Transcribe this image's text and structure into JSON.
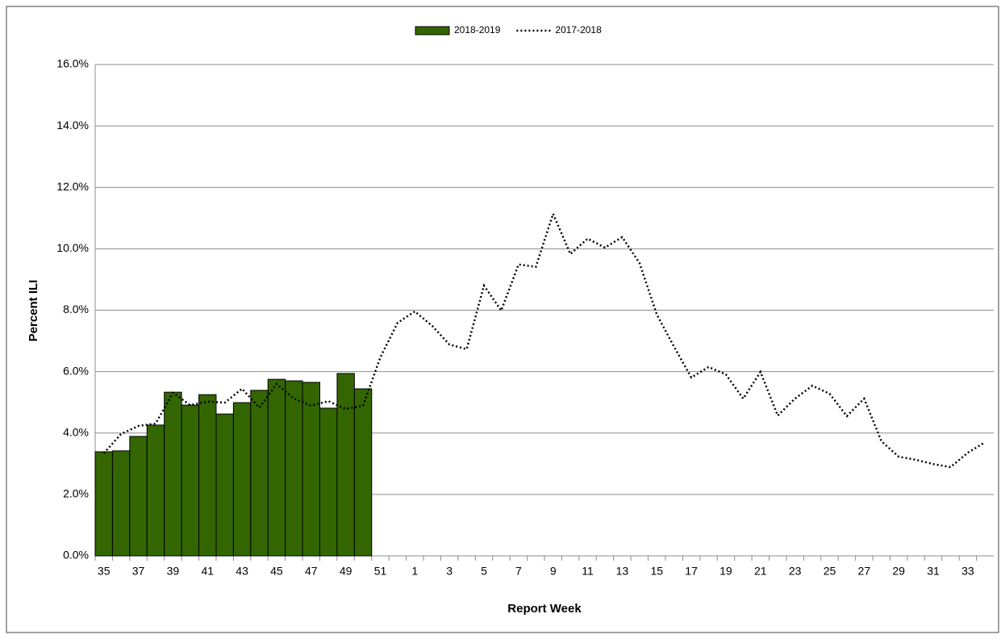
{
  "chart_data": {
    "type": "bar",
    "x_label": "Report Week",
    "y_label": "Percent ILI",
    "categories": [
      "35",
      null,
      "37",
      null,
      "39",
      null,
      "41",
      null,
      "43",
      null,
      "45",
      null,
      "47",
      null,
      "49",
      null,
      "51",
      null,
      "1",
      null,
      "3",
      null,
      "5",
      null,
      "7",
      null,
      "9",
      null,
      "11",
      null,
      "13",
      null,
      "15",
      null,
      "17",
      null,
      "19",
      null,
      "21",
      null,
      "23",
      null,
      "25",
      null,
      "27",
      null,
      "29",
      null,
      "31",
      null,
      "33",
      null
    ],
    "series": [
      {
        "name": "2018-2019",
        "type": "bar",
        "color": "#336600",
        "values": [
          3.39,
          3.42,
          3.89,
          4.26,
          5.33,
          4.91,
          5.25,
          4.62,
          4.99,
          5.39,
          5.75,
          5.7,
          5.65,
          4.81,
          5.94,
          5.44,
          null,
          null,
          null,
          null,
          null,
          null,
          null,
          null,
          null,
          null,
          null,
          null,
          null,
          null,
          null,
          null,
          null,
          null,
          null,
          null,
          null,
          null,
          null,
          null,
          null,
          null,
          null,
          null,
          null,
          null,
          null,
          null,
          null,
          null,
          null,
          null
        ]
      },
      {
        "name": "2017-2018",
        "type": "line",
        "color": "#000000",
        "values": [
          3.34,
          3.97,
          4.23,
          4.31,
          5.31,
          4.91,
          5.02,
          4.99,
          5.44,
          4.83,
          5.6,
          5.12,
          4.89,
          5.04,
          4.78,
          4.89,
          6.46,
          7.59,
          7.96,
          7.49,
          6.88,
          6.73,
          8.8,
          7.99,
          9.49,
          9.41,
          11.14,
          9.83,
          10.33,
          10.04,
          10.38,
          9.54,
          7.86,
          6.81,
          5.81,
          6.15,
          5.91,
          5.12,
          5.99,
          4.57,
          5.12,
          5.54,
          5.28,
          4.55,
          5.12,
          3.73,
          3.23,
          3.13,
          2.99,
          2.89,
          3.36,
          3.7
        ]
      }
    ],
    "ylim": [
      0,
      16
    ],
    "yticks": [
      {
        "value": 0,
        "label": "0.0%"
      },
      {
        "value": 2,
        "label": "2.0%"
      },
      {
        "value": 4,
        "label": "4.0%"
      },
      {
        "value": 6,
        "label": "6.0%"
      },
      {
        "value": 8,
        "label": "8.0%"
      },
      {
        "value": 10,
        "label": "10.0%"
      },
      {
        "value": 12,
        "label": "12.0%"
      },
      {
        "value": 14,
        "label": "14.0%"
      },
      {
        "value": 16,
        "label": "16.0%"
      }
    ],
    "grid": true,
    "legend": "top"
  }
}
